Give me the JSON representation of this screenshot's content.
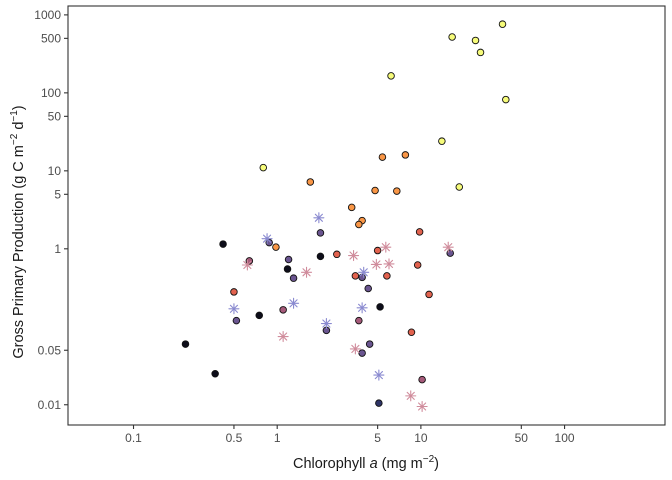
{
  "chart_data": {
    "type": "scatter",
    "xlabel": {
      "main": "Chlorophyll ",
      "italic": "a",
      "unit": " (mg m",
      "sup": "−2",
      "close": ")"
    },
    "ylabel": {
      "main": "Gross Primary Production (g C m",
      "sup1": "−2",
      "mid": " d",
      "sup2": "−1",
      "close": ")"
    },
    "x_scale": "log10",
    "y_scale": "log10",
    "xlim": [
      0.035,
      500
    ],
    "ylim": [
      0.0055,
      1300
    ],
    "x_ticks": [
      {
        "value": 0.1,
        "label": "0.1"
      },
      {
        "value": 0.5,
        "label": "0.5"
      },
      {
        "value": 1,
        "label": "1"
      },
      {
        "value": 5,
        "label": "5"
      },
      {
        "value": 10,
        "label": "10"
      },
      {
        "value": 50,
        "label": "50"
      },
      {
        "value": 100,
        "label": "100"
      }
    ],
    "y_ticks": [
      {
        "value": 0.01,
        "label": "0.01"
      },
      {
        "value": 0.05,
        "label": "0.05"
      },
      {
        "value": 1,
        "label": "1"
      },
      {
        "value": 5,
        "label": "5"
      },
      {
        "value": 10,
        "label": "10"
      },
      {
        "value": 50,
        "label": "50"
      },
      {
        "value": 100,
        "label": "100"
      },
      {
        "value": 500,
        "label": "500"
      },
      {
        "value": 1000,
        "label": "1000"
      }
    ],
    "grid": false,
    "legend": "none",
    "point_colors": {
      "yellow": "#f6fb7a",
      "orange": "#f99646",
      "coral": "#e2624e",
      "mauve": "#a65a7a",
      "purple": "#6a5590",
      "navy": "#2e3466",
      "black": "#0d0d1a",
      "star_pink": "#d08c9c",
      "star_blue": "#8a8ad0"
    },
    "points": [
      {
        "x": 16.5,
        "y": 520,
        "c": "yellow",
        "s": "circle"
      },
      {
        "x": 24,
        "y": 470,
        "c": "yellow",
        "s": "circle"
      },
      {
        "x": 26,
        "y": 330,
        "c": "yellow",
        "s": "circle"
      },
      {
        "x": 37,
        "y": 760,
        "c": "yellow",
        "s": "circle"
      },
      {
        "x": 6.2,
        "y": 165,
        "c": "yellow",
        "s": "circle"
      },
      {
        "x": 39,
        "y": 82,
        "c": "yellow",
        "s": "circle"
      },
      {
        "x": 14,
        "y": 24,
        "c": "yellow",
        "s": "circle"
      },
      {
        "x": 18.5,
        "y": 6.2,
        "c": "yellow",
        "s": "circle"
      },
      {
        "x": 0.8,
        "y": 11,
        "c": "yellow",
        "s": "circle"
      },
      {
        "x": 5.4,
        "y": 15,
        "c": "orange",
        "s": "circle"
      },
      {
        "x": 7.8,
        "y": 16,
        "c": "orange",
        "s": "circle"
      },
      {
        "x": 1.7,
        "y": 7.2,
        "c": "orange",
        "s": "circle"
      },
      {
        "x": 4.8,
        "y": 5.6,
        "c": "orange",
        "s": "circle"
      },
      {
        "x": 6.8,
        "y": 5.5,
        "c": "orange",
        "s": "circle"
      },
      {
        "x": 3.3,
        "y": 3.4,
        "c": "orange",
        "s": "circle"
      },
      {
        "x": 3.9,
        "y": 2.3,
        "c": "orange",
        "s": "circle"
      },
      {
        "x": 3.7,
        "y": 2.05,
        "c": "orange",
        "s": "circle"
      },
      {
        "x": 0.98,
        "y": 1.05,
        "c": "orange",
        "s": "circle"
      },
      {
        "x": 9.8,
        "y": 1.65,
        "c": "coral",
        "s": "circle"
      },
      {
        "x": 2.6,
        "y": 0.85,
        "c": "coral",
        "s": "circle"
      },
      {
        "x": 0.5,
        "y": 0.28,
        "c": "coral",
        "s": "circle"
      },
      {
        "x": 11.4,
        "y": 0.26,
        "c": "coral",
        "s": "circle"
      },
      {
        "x": 9.5,
        "y": 0.62,
        "c": "coral",
        "s": "circle"
      },
      {
        "x": 5.8,
        "y": 0.45,
        "c": "coral",
        "s": "circle"
      },
      {
        "x": 5.0,
        "y": 0.95,
        "c": "coral",
        "s": "circle"
      },
      {
        "x": 3.5,
        "y": 0.45,
        "c": "coral",
        "s": "circle"
      },
      {
        "x": 8.6,
        "y": 0.085,
        "c": "coral",
        "s": "circle"
      },
      {
        "x": 10.2,
        "y": 0.021,
        "c": "mauve",
        "s": "circle"
      },
      {
        "x": 0.64,
        "y": 0.7,
        "c": "mauve",
        "s": "circle"
      },
      {
        "x": 1.1,
        "y": 0.165,
        "c": "mauve",
        "s": "circle"
      },
      {
        "x": 3.7,
        "y": 0.12,
        "c": "mauve",
        "s": "circle"
      },
      {
        "x": 16,
        "y": 0.88,
        "c": "purple",
        "s": "circle"
      },
      {
        "x": 2.0,
        "y": 1.6,
        "c": "purple",
        "s": "circle"
      },
      {
        "x": 0.88,
        "y": 1.2,
        "c": "purple",
        "s": "circle"
      },
      {
        "x": 1.2,
        "y": 0.73,
        "c": "purple",
        "s": "circle"
      },
      {
        "x": 1.3,
        "y": 0.42,
        "c": "purple",
        "s": "circle"
      },
      {
        "x": 3.9,
        "y": 0.43,
        "c": "purple",
        "s": "circle"
      },
      {
        "x": 0.52,
        "y": 0.12,
        "c": "purple",
        "s": "circle"
      },
      {
        "x": 2.2,
        "y": 0.09,
        "c": "purple",
        "s": "circle"
      },
      {
        "x": 4.3,
        "y": 0.31,
        "c": "purple",
        "s": "circle"
      },
      {
        "x": 4.4,
        "y": 0.06,
        "c": "purple",
        "s": "circle"
      },
      {
        "x": 3.9,
        "y": 0.046,
        "c": "purple",
        "s": "circle"
      },
      {
        "x": 0.42,
        "y": 1.15,
        "c": "black",
        "s": "circle"
      },
      {
        "x": 1.18,
        "y": 0.55,
        "c": "black",
        "s": "circle"
      },
      {
        "x": 2.0,
        "y": 0.8,
        "c": "black",
        "s": "circle"
      },
      {
        "x": 0.75,
        "y": 0.14,
        "c": "black",
        "s": "circle"
      },
      {
        "x": 0.23,
        "y": 0.06,
        "c": "black",
        "s": "circle"
      },
      {
        "x": 0.37,
        "y": 0.025,
        "c": "black",
        "s": "circle"
      },
      {
        "x": 5.2,
        "y": 0.18,
        "c": "black",
        "s": "circle"
      },
      {
        "x": 5.1,
        "y": 0.0105,
        "c": "navy",
        "s": "circle"
      },
      {
        "x": 0.62,
        "y": 0.62,
        "c": "star_pink",
        "s": "star"
      },
      {
        "x": 1.1,
        "y": 0.075,
        "c": "star_pink",
        "s": "star"
      },
      {
        "x": 1.6,
        "y": 0.5,
        "c": "star_pink",
        "s": "star"
      },
      {
        "x": 3.4,
        "y": 0.82,
        "c": "star_pink",
        "s": "star"
      },
      {
        "x": 4.9,
        "y": 0.63,
        "c": "star_pink",
        "s": "star"
      },
      {
        "x": 5.7,
        "y": 1.05,
        "c": "star_pink",
        "s": "star"
      },
      {
        "x": 6.0,
        "y": 0.64,
        "c": "star_pink",
        "s": "star"
      },
      {
        "x": 15.5,
        "y": 1.05,
        "c": "star_pink",
        "s": "star"
      },
      {
        "x": 8.5,
        "y": 0.013,
        "c": "star_pink",
        "s": "star"
      },
      {
        "x": 10.2,
        "y": 0.0095,
        "c": "star_pink",
        "s": "star"
      },
      {
        "x": 3.5,
        "y": 0.052,
        "c": "star_pink",
        "s": "star"
      },
      {
        "x": 1.95,
        "y": 2.5,
        "c": "star_blue",
        "s": "star"
      },
      {
        "x": 0.85,
        "y": 1.35,
        "c": "star_blue",
        "s": "star"
      },
      {
        "x": 1.3,
        "y": 0.2,
        "c": "star_blue",
        "s": "star"
      },
      {
        "x": 0.5,
        "y": 0.17,
        "c": "star_blue",
        "s": "star"
      },
      {
        "x": 2.2,
        "y": 0.11,
        "c": "star_blue",
        "s": "star"
      },
      {
        "x": 3.9,
        "y": 0.175,
        "c": "star_blue",
        "s": "star"
      },
      {
        "x": 4.0,
        "y": 0.5,
        "c": "star_blue",
        "s": "star"
      },
      {
        "x": 5.1,
        "y": 0.024,
        "c": "star_blue",
        "s": "star"
      }
    ]
  }
}
